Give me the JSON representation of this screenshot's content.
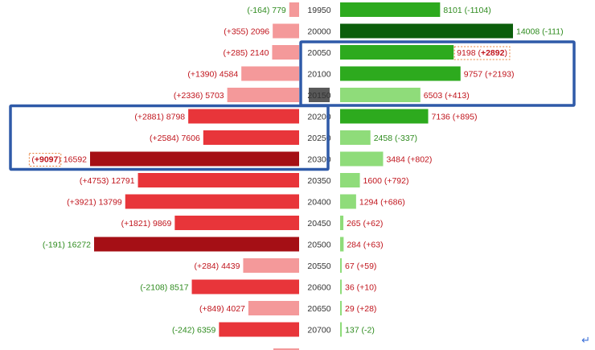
{
  "chart_data": {
    "type": "bar",
    "layout": "butterfly",
    "categories": [
      "19950",
      "20000",
      "20050",
      "20100",
      "20150",
      "20200",
      "20250",
      "20300",
      "20350",
      "20400",
      "20450",
      "20500",
      "20550",
      "20600",
      "20650",
      "20700"
    ],
    "left_series": {
      "values": [
        779,
        2096,
        2140,
        4584,
        5703,
        8798,
        7606,
        16592,
        12791,
        13799,
        9869,
        16272,
        4439,
        8517,
        4027,
        6359
      ],
      "changes": [
        "-164",
        "+355",
        "+285",
        "+1390",
        "+2336",
        "+2881",
        "+2584",
        "+9097",
        "+4753",
        "+3921",
        "+1821",
        "-191",
        "+284",
        "-2108",
        "+849",
        "-242"
      ]
    },
    "right_series": {
      "values": [
        8101,
        14008,
        9198,
        9757,
        6503,
        7136,
        2458,
        3484,
        1600,
        1294,
        265,
        284,
        67,
        36,
        29,
        137
      ],
      "changes": [
        "-1104",
        "-111",
        "+2892",
        "+2193",
        "+413",
        "+895",
        "-337",
        "+802",
        "+792",
        "+686",
        "+62",
        "+63",
        "+59",
        "+10",
        "+28",
        "-2"
      ]
    },
    "highlighted_category": "20150",
    "highlight_boxes": [
      {
        "side": "right",
        "from": "20050",
        "to": "20150"
      },
      {
        "side": "left",
        "from": "20200",
        "to": "20300"
      }
    ],
    "emphasized_labels": [
      {
        "side": "right",
        "category": "20050"
      },
      {
        "side": "left",
        "category": "20300"
      }
    ],
    "colors": {
      "left_dark": "#a50f15",
      "left_mid": "#e8353a",
      "left_light": "#f4999a",
      "right_dark": "#0b5e0b",
      "right_mid": "#2daa1e",
      "right_light": "#8fdc7a",
      "change_up": "#c0141c",
      "change_down": "#2e8b1e",
      "box": "#2f5aa8",
      "center_highlight": "#595959"
    }
  }
}
